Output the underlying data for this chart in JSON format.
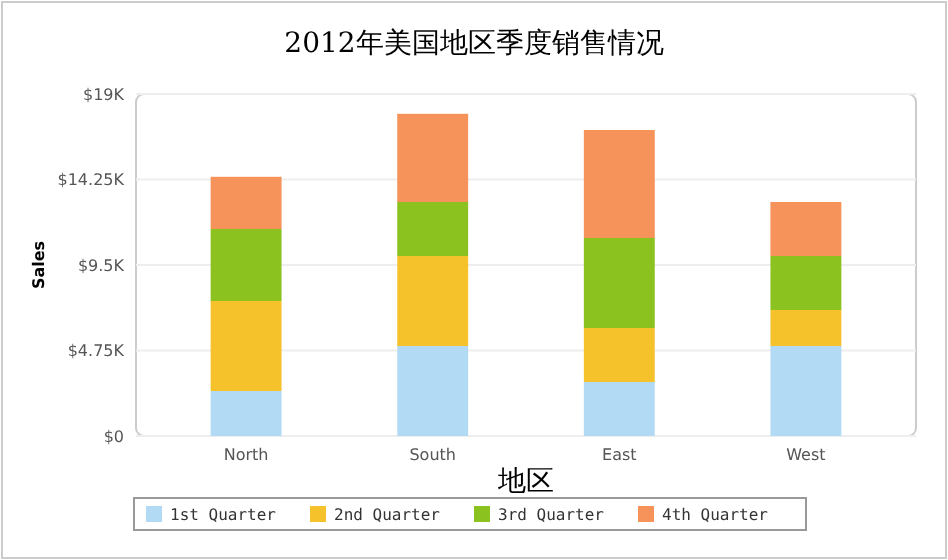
{
  "chart_data": {
    "type": "bar",
    "title": "2012年美国地区季度销售情况",
    "xlabel": "地区",
    "ylabel": "Sales",
    "stacked": true,
    "categories": [
      "North",
      "South",
      "East",
      "West"
    ],
    "series": [
      {
        "name": "1st Quarter",
        "color": "#b3daf5",
        "values": [
          2500,
          5000,
          3000,
          5000
        ]
      },
      {
        "name": "2nd Quarter",
        "color": "#f5c22b",
        "values": [
          5000,
          5000,
          3000,
          2000
        ]
      },
      {
        "name": "3rd Quarter",
        "color": "#8bc21f",
        "values": [
          4000,
          3000,
          5000,
          3000
        ]
      },
      {
        "name": "4th Quarter",
        "color": "#f5935a",
        "values": [
          2900,
          4900,
          6000,
          3000
        ]
      }
    ],
    "ylim": [
      0,
      19000
    ],
    "yticks": [
      {
        "value": 0,
        "label": "$0"
      },
      {
        "value": 4750,
        "label": "$4.75K"
      },
      {
        "value": 9500,
        "label": "$9.5K"
      },
      {
        "value": 14250,
        "label": "$14.25K"
      },
      {
        "value": 19000,
        "label": "$19K"
      }
    ],
    "grid": "y",
    "legend": "bottom"
  }
}
